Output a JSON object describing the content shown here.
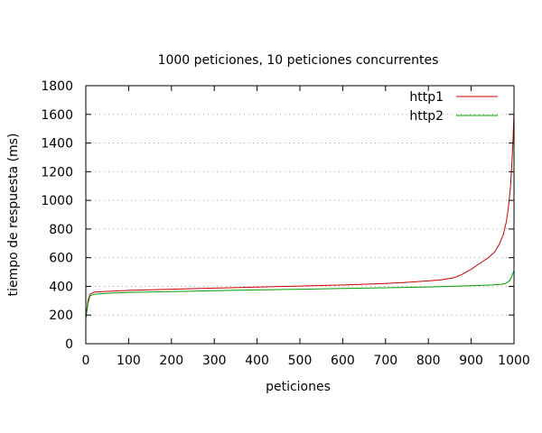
{
  "chart_data": {
    "type": "line",
    "title": "1000 peticiones, 10 peticiones concurrentes",
    "xlabel": "peticiones",
    "ylabel": "tiempo de respuesta (ms)",
    "xlim": [
      0,
      1000
    ],
    "ylim": [
      0,
      1800
    ],
    "xticks": [
      0,
      100,
      200,
      300,
      400,
      500,
      600,
      700,
      800,
      900,
      1000
    ],
    "yticks": [
      0,
      200,
      400,
      600,
      800,
      1000,
      1200,
      1400,
      1600,
      1800
    ],
    "grid": "horizontal dotted",
    "legend_position": "top-right",
    "series": [
      {
        "name": "http1",
        "color": "#cc0000",
        "points": [
          [
            0,
            180
          ],
          [
            5,
            300
          ],
          [
            10,
            345
          ],
          [
            20,
            360
          ],
          [
            50,
            365
          ],
          [
            100,
            372
          ],
          [
            200,
            380
          ],
          [
            300,
            388
          ],
          [
            400,
            395
          ],
          [
            500,
            402
          ],
          [
            600,
            410
          ],
          [
            700,
            420
          ],
          [
            750,
            428
          ],
          [
            800,
            438
          ],
          [
            830,
            445
          ],
          [
            860,
            460
          ],
          [
            880,
            485
          ],
          [
            900,
            520
          ],
          [
            920,
            560
          ],
          [
            940,
            600
          ],
          [
            955,
            640
          ],
          [
            965,
            690
          ],
          [
            975,
            760
          ],
          [
            982,
            850
          ],
          [
            987,
            950
          ],
          [
            992,
            1100
          ],
          [
            995,
            1250
          ],
          [
            998,
            1450
          ],
          [
            1000,
            1610
          ]
        ]
      },
      {
        "name": "http2",
        "color": "#00a000",
        "points": [
          [
            0,
            175
          ],
          [
            5,
            280
          ],
          [
            10,
            335
          ],
          [
            20,
            345
          ],
          [
            50,
            352
          ],
          [
            100,
            358
          ],
          [
            200,
            364
          ],
          [
            300,
            370
          ],
          [
            400,
            375
          ],
          [
            500,
            380
          ],
          [
            600,
            385
          ],
          [
            700,
            390
          ],
          [
            800,
            396
          ],
          [
            900,
            404
          ],
          [
            950,
            410
          ],
          [
            970,
            415
          ],
          [
            980,
            420
          ],
          [
            990,
            440
          ],
          [
            995,
            470
          ],
          [
            1000,
            510
          ]
        ]
      }
    ]
  }
}
